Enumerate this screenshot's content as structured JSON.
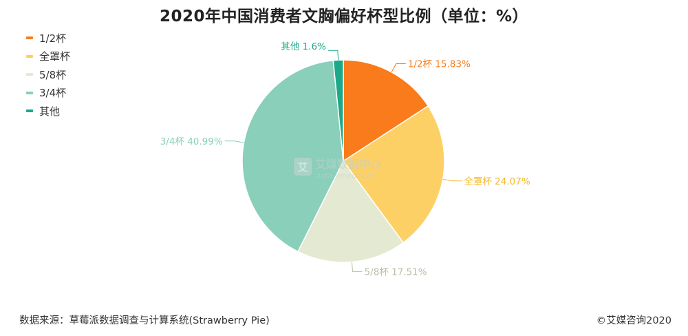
{
  "title": "2020年中国消费者文胸偏好杯型比例（单位：%）",
  "footer": {
    "source": "数据来源：草莓派数据调查与计算系统(Strawberry Pie)",
    "copyright": "©艾媒咨询2020"
  },
  "watermark": {
    "name": "艾媒数据中心",
    "url": "data.iimedia.cn",
    "logo_char": "艾"
  },
  "chart_data": {
    "type": "pie",
    "categories": [
      "1/2杯",
      "全罩杯",
      "5/8杯",
      "3/4杯",
      "其他"
    ],
    "values": [
      15.83,
      24.07,
      17.51,
      40.99,
      1.6
    ],
    "labels": [
      "1/2杯 15.83%",
      "全罩杯 24.07%",
      "5/8杯 17.51%",
      "3/4杯 40.99%",
      "其他 1.6%"
    ],
    "colors": [
      "#F97B1C",
      "#FDD066",
      "#E4EAD1",
      "#89CFBA",
      "#1CA88A"
    ],
    "label_colors": [
      "#F97B1C",
      "#F5B82E",
      "#B7C0A6",
      "#89CFBA",
      "#1CA88A"
    ],
    "legend_position": "top-left",
    "start_angle_deg": 0,
    "direction": "clockwise"
  }
}
